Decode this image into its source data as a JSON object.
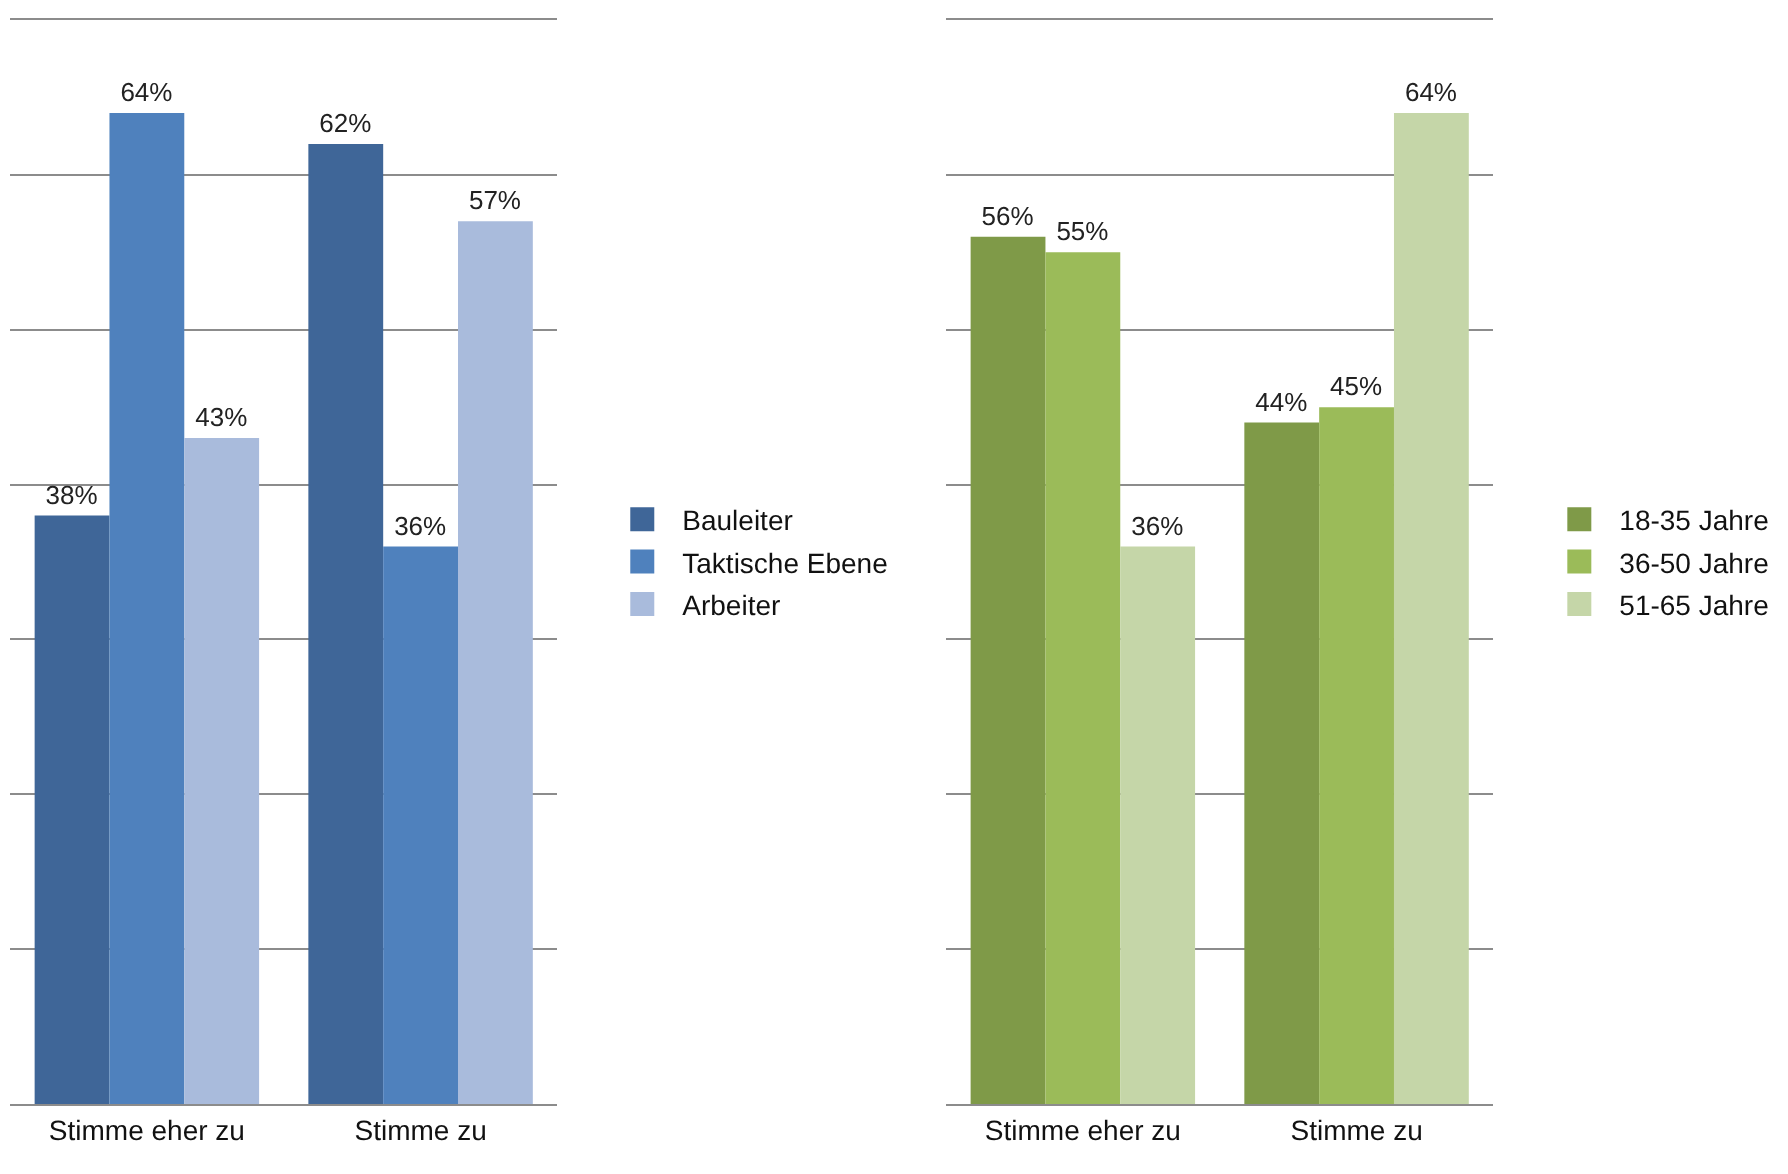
{
  "chart_data": [
    {
      "type": "bar",
      "categories": [
        "Stimme eher zu",
        "Stimme zu"
      ],
      "ylim": [
        0,
        70
      ],
      "yticks": [
        {
          "value": 0,
          "label": null
        },
        {
          "value": 10,
          "label": null
        },
        {
          "value": 20,
          "label": null
        },
        {
          "value": 30,
          "label": null
        },
        {
          "value": 40,
          "label": null
        },
        {
          "value": 50,
          "label": null
        },
        {
          "value": 60,
          "label": null
        },
        {
          "value": 70,
          "label": null
        }
      ],
      "tick_labels": "x",
      "grid": "y",
      "legend": "right",
      "series": [
        {
          "name": "Bauleiter",
          "color": "#3f6698",
          "values": [
            38,
            62
          ],
          "value_labels": [
            "38%",
            "62%"
          ]
        },
        {
          "name": "Taktische Ebene",
          "color": "#4f81bd",
          "values": [
            64,
            36
          ],
          "value_labels": [
            "64%",
            "36%"
          ]
        },
        {
          "name": "Arbeiter",
          "color": "#a9bbdc",
          "values": [
            43,
            57
          ],
          "value_labels": [
            "43%",
            "57%"
          ]
        }
      ]
    },
    {
      "type": "bar",
      "categories": [
        "Stimme eher zu",
        "Stimme zu"
      ],
      "ylim": [
        0,
        70
      ],
      "yticks": [
        {
          "value": 0,
          "label": null
        },
        {
          "value": 10,
          "label": null
        },
        {
          "value": 20,
          "label": null
        },
        {
          "value": 30,
          "label": null
        },
        {
          "value": 40,
          "label": null
        },
        {
          "value": 50,
          "label": null
        },
        {
          "value": 60,
          "label": null
        },
        {
          "value": 70,
          "label": null
        }
      ],
      "tick_labels": "x",
      "grid": "y",
      "legend": "right",
      "series": [
        {
          "name": "18-35 Jahre",
          "color": "#7f9a48",
          "values": [
            56,
            44
          ],
          "value_labels": [
            "56%",
            "44%"
          ]
        },
        {
          "name": "36-50 Jahre",
          "color": "#9bbb59",
          "values": [
            55,
            45
          ],
          "value_labels": [
            "55%",
            "45%"
          ]
        },
        {
          "name": "51-65 Jahre",
          "color": "#c5d6a8",
          "values": [
            36,
            64
          ],
          "value_labels": [
            "36%",
            "64%"
          ]
        }
      ]
    }
  ]
}
